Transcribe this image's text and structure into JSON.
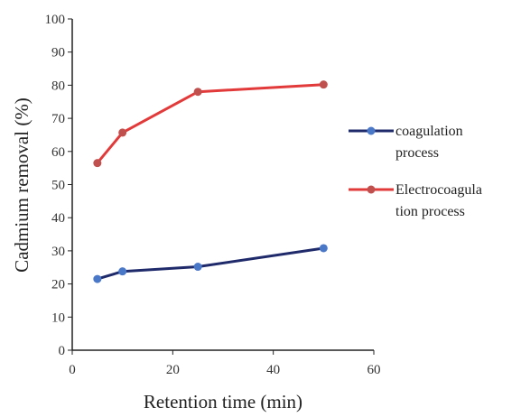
{
  "chart_data": {
    "type": "line",
    "title": "",
    "xlabel": "Retention time (min)",
    "ylabel": "Cadmium removal (%)",
    "xlim": [
      0,
      60
    ],
    "ylim": [
      0,
      100
    ],
    "xticks": [
      0,
      20,
      40,
      60
    ],
    "yticks": [
      0,
      10,
      20,
      30,
      40,
      50,
      60,
      70,
      80,
      90,
      100
    ],
    "grid": false,
    "legend_position": "right",
    "series": [
      {
        "name": " coagulation process",
        "legend_lines": [
          " coagulation",
          "process"
        ],
        "line_color": "#1f2a6b",
        "marker_color": "#4a78c8",
        "x": [
          5,
          10,
          25,
          50
        ],
        "y": [
          21.5,
          23.8,
          25.2,
          30.8
        ]
      },
      {
        "name": "Electrocoagulation process",
        "legend_lines": [
          "Electrocoagula",
          "tion process"
        ],
        "line_color": "#e23a3a",
        "marker_color": "#c0504d",
        "x": [
          5,
          10,
          25,
          50
        ],
        "y": [
          56.5,
          65.7,
          78.0,
          80.2
        ]
      }
    ]
  }
}
